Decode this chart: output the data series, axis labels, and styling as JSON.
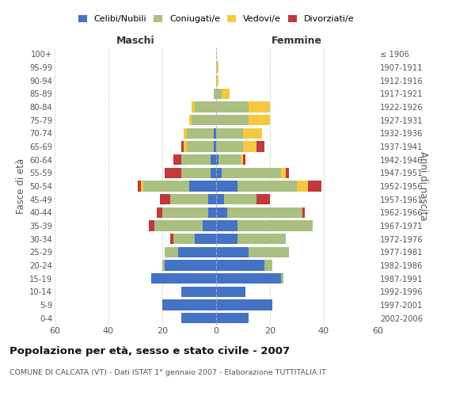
{
  "age_groups": [
    "0-4",
    "5-9",
    "10-14",
    "15-19",
    "20-24",
    "25-29",
    "30-34",
    "35-39",
    "40-44",
    "45-49",
    "50-54",
    "55-59",
    "60-64",
    "65-69",
    "70-74",
    "75-79",
    "80-84",
    "85-89",
    "90-94",
    "95-99",
    "100+"
  ],
  "birth_years": [
    "2002-2006",
    "1997-2001",
    "1992-1996",
    "1987-1991",
    "1982-1986",
    "1977-1981",
    "1972-1976",
    "1967-1971",
    "1962-1966",
    "1957-1961",
    "1952-1956",
    "1947-1951",
    "1942-1946",
    "1937-1941",
    "1932-1936",
    "1927-1931",
    "1922-1926",
    "1917-1921",
    "1912-1916",
    "1907-1911",
    "≤ 1906"
  ],
  "males": {
    "celibi": [
      13,
      20,
      13,
      24,
      19,
      14,
      8,
      5,
      3,
      3,
      10,
      2,
      2,
      1,
      1,
      0,
      0,
      0,
      0,
      0,
      0
    ],
    "coniugati": [
      0,
      0,
      0,
      0,
      1,
      5,
      8,
      18,
      17,
      14,
      17,
      11,
      11,
      10,
      10,
      9,
      8,
      1,
      0,
      0,
      0
    ],
    "vedovi": [
      0,
      0,
      0,
      0,
      0,
      0,
      0,
      0,
      0,
      0,
      1,
      0,
      0,
      1,
      1,
      1,
      1,
      0,
      0,
      0,
      0
    ],
    "divorziati": [
      0,
      0,
      0,
      0,
      0,
      0,
      1,
      2,
      2,
      4,
      1,
      6,
      3,
      1,
      0,
      0,
      0,
      0,
      0,
      0,
      0
    ]
  },
  "females": {
    "nubili": [
      12,
      21,
      11,
      24,
      18,
      12,
      8,
      8,
      4,
      3,
      8,
      2,
      1,
      0,
      0,
      0,
      0,
      0,
      0,
      0,
      0
    ],
    "coniugate": [
      0,
      0,
      0,
      1,
      3,
      15,
      18,
      28,
      28,
      12,
      22,
      22,
      8,
      10,
      10,
      12,
      12,
      2,
      0,
      0,
      0
    ],
    "vedove": [
      0,
      0,
      0,
      0,
      0,
      0,
      0,
      0,
      0,
      0,
      4,
      2,
      1,
      5,
      7,
      8,
      8,
      3,
      1,
      1,
      0
    ],
    "divorziate": [
      0,
      0,
      0,
      0,
      0,
      0,
      0,
      0,
      1,
      5,
      5,
      1,
      1,
      3,
      0,
      0,
      0,
      0,
      0,
      0,
      0
    ]
  },
  "colors": {
    "celibi": "#4472C4",
    "coniugati": "#AABF80",
    "vedovi": "#F5C842",
    "divorziati": "#C0393B"
  },
  "xlim": 60,
  "title": "Popolazione per età, sesso e stato civile - 2007",
  "subtitle": "COMUNE DI CALCATA (VT) - Dati ISTAT 1° gennaio 2007 - Elaborazione TUTTITALIA.IT",
  "ylabel_left": "Fasce di età",
  "ylabel_right": "Anni di nascita",
  "xlabel_left": "Maschi",
  "xlabel_right": "Femmine",
  "legend_labels": [
    "Celibi/Nubili",
    "Coniugati/e",
    "Vedovi/e",
    "Divorziati/e"
  ],
  "background_color": "#ffffff",
  "grid_color": "#bbbbbb"
}
